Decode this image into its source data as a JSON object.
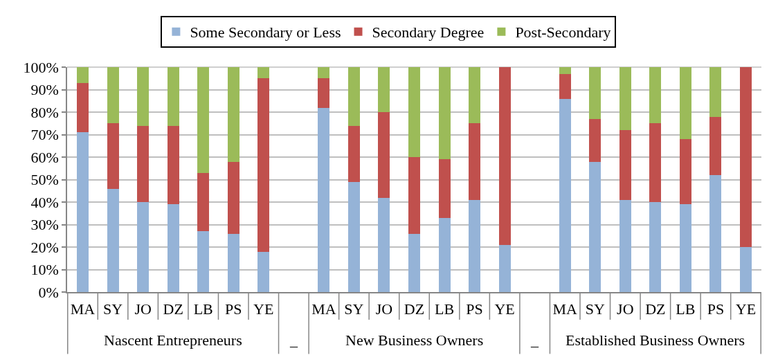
{
  "chart_data": {
    "type": "bar",
    "stacked": true,
    "categories": [
      "MA",
      "SY",
      "JO",
      "DZ",
      "LB",
      "PS",
      "YE",
      null,
      "MA",
      "SY",
      "JO",
      "DZ",
      "LB",
      "PS",
      "YE",
      null,
      "MA",
      "SY",
      "JO",
      "DZ",
      "LB",
      "PS",
      "YE"
    ],
    "series": [
      {
        "name": "Some Secondary or Less",
        "color": "#95b3d7",
        "values": [
          71,
          46,
          40,
          39,
          27,
          26,
          18,
          null,
          82,
          49,
          42,
          26,
          33,
          41,
          21,
          null,
          86,
          58,
          41,
          40,
          39,
          52,
          20
        ]
      },
      {
        "name": "Secondary Degree",
        "color": "#c0504d",
        "values": [
          22,
          29,
          34,
          35,
          26,
          32,
          77,
          null,
          13,
          25,
          38,
          34,
          26,
          34,
          79,
          null,
          11,
          19,
          31,
          35,
          29,
          26,
          80
        ]
      },
      {
        "name": "Post-Secondary",
        "color": "#9bbb59",
        "values": [
          7,
          25,
          26,
          26,
          47,
          42,
          5,
          null,
          5,
          26,
          20,
          40,
          41,
          25,
          0,
          null,
          3,
          23,
          28,
          25,
          32,
          22,
          0
        ]
      }
    ],
    "annotations": [
      "Nascent Entrepreneurs",
      "_",
      "New Business Owners",
      "_",
      "Established Business Owners"
    ],
    "ylim": [
      0,
      100
    ],
    "yticks": [
      {
        "value": 0,
        "label": "0%"
      },
      {
        "value": 10,
        "label": "10%"
      },
      {
        "value": 20,
        "label": "20%"
      },
      {
        "value": 30,
        "label": "30%"
      },
      {
        "value": 40,
        "label": "40%"
      },
      {
        "value": 50,
        "label": "50%"
      },
      {
        "value": 60,
        "label": "60%"
      },
      {
        "value": 70,
        "label": "70%"
      },
      {
        "value": 80,
        "label": "80%"
      },
      {
        "value": 90,
        "label": "90%"
      },
      {
        "value": 100,
        "label": "100%"
      }
    ],
    "grid": "y",
    "legend": "top"
  }
}
